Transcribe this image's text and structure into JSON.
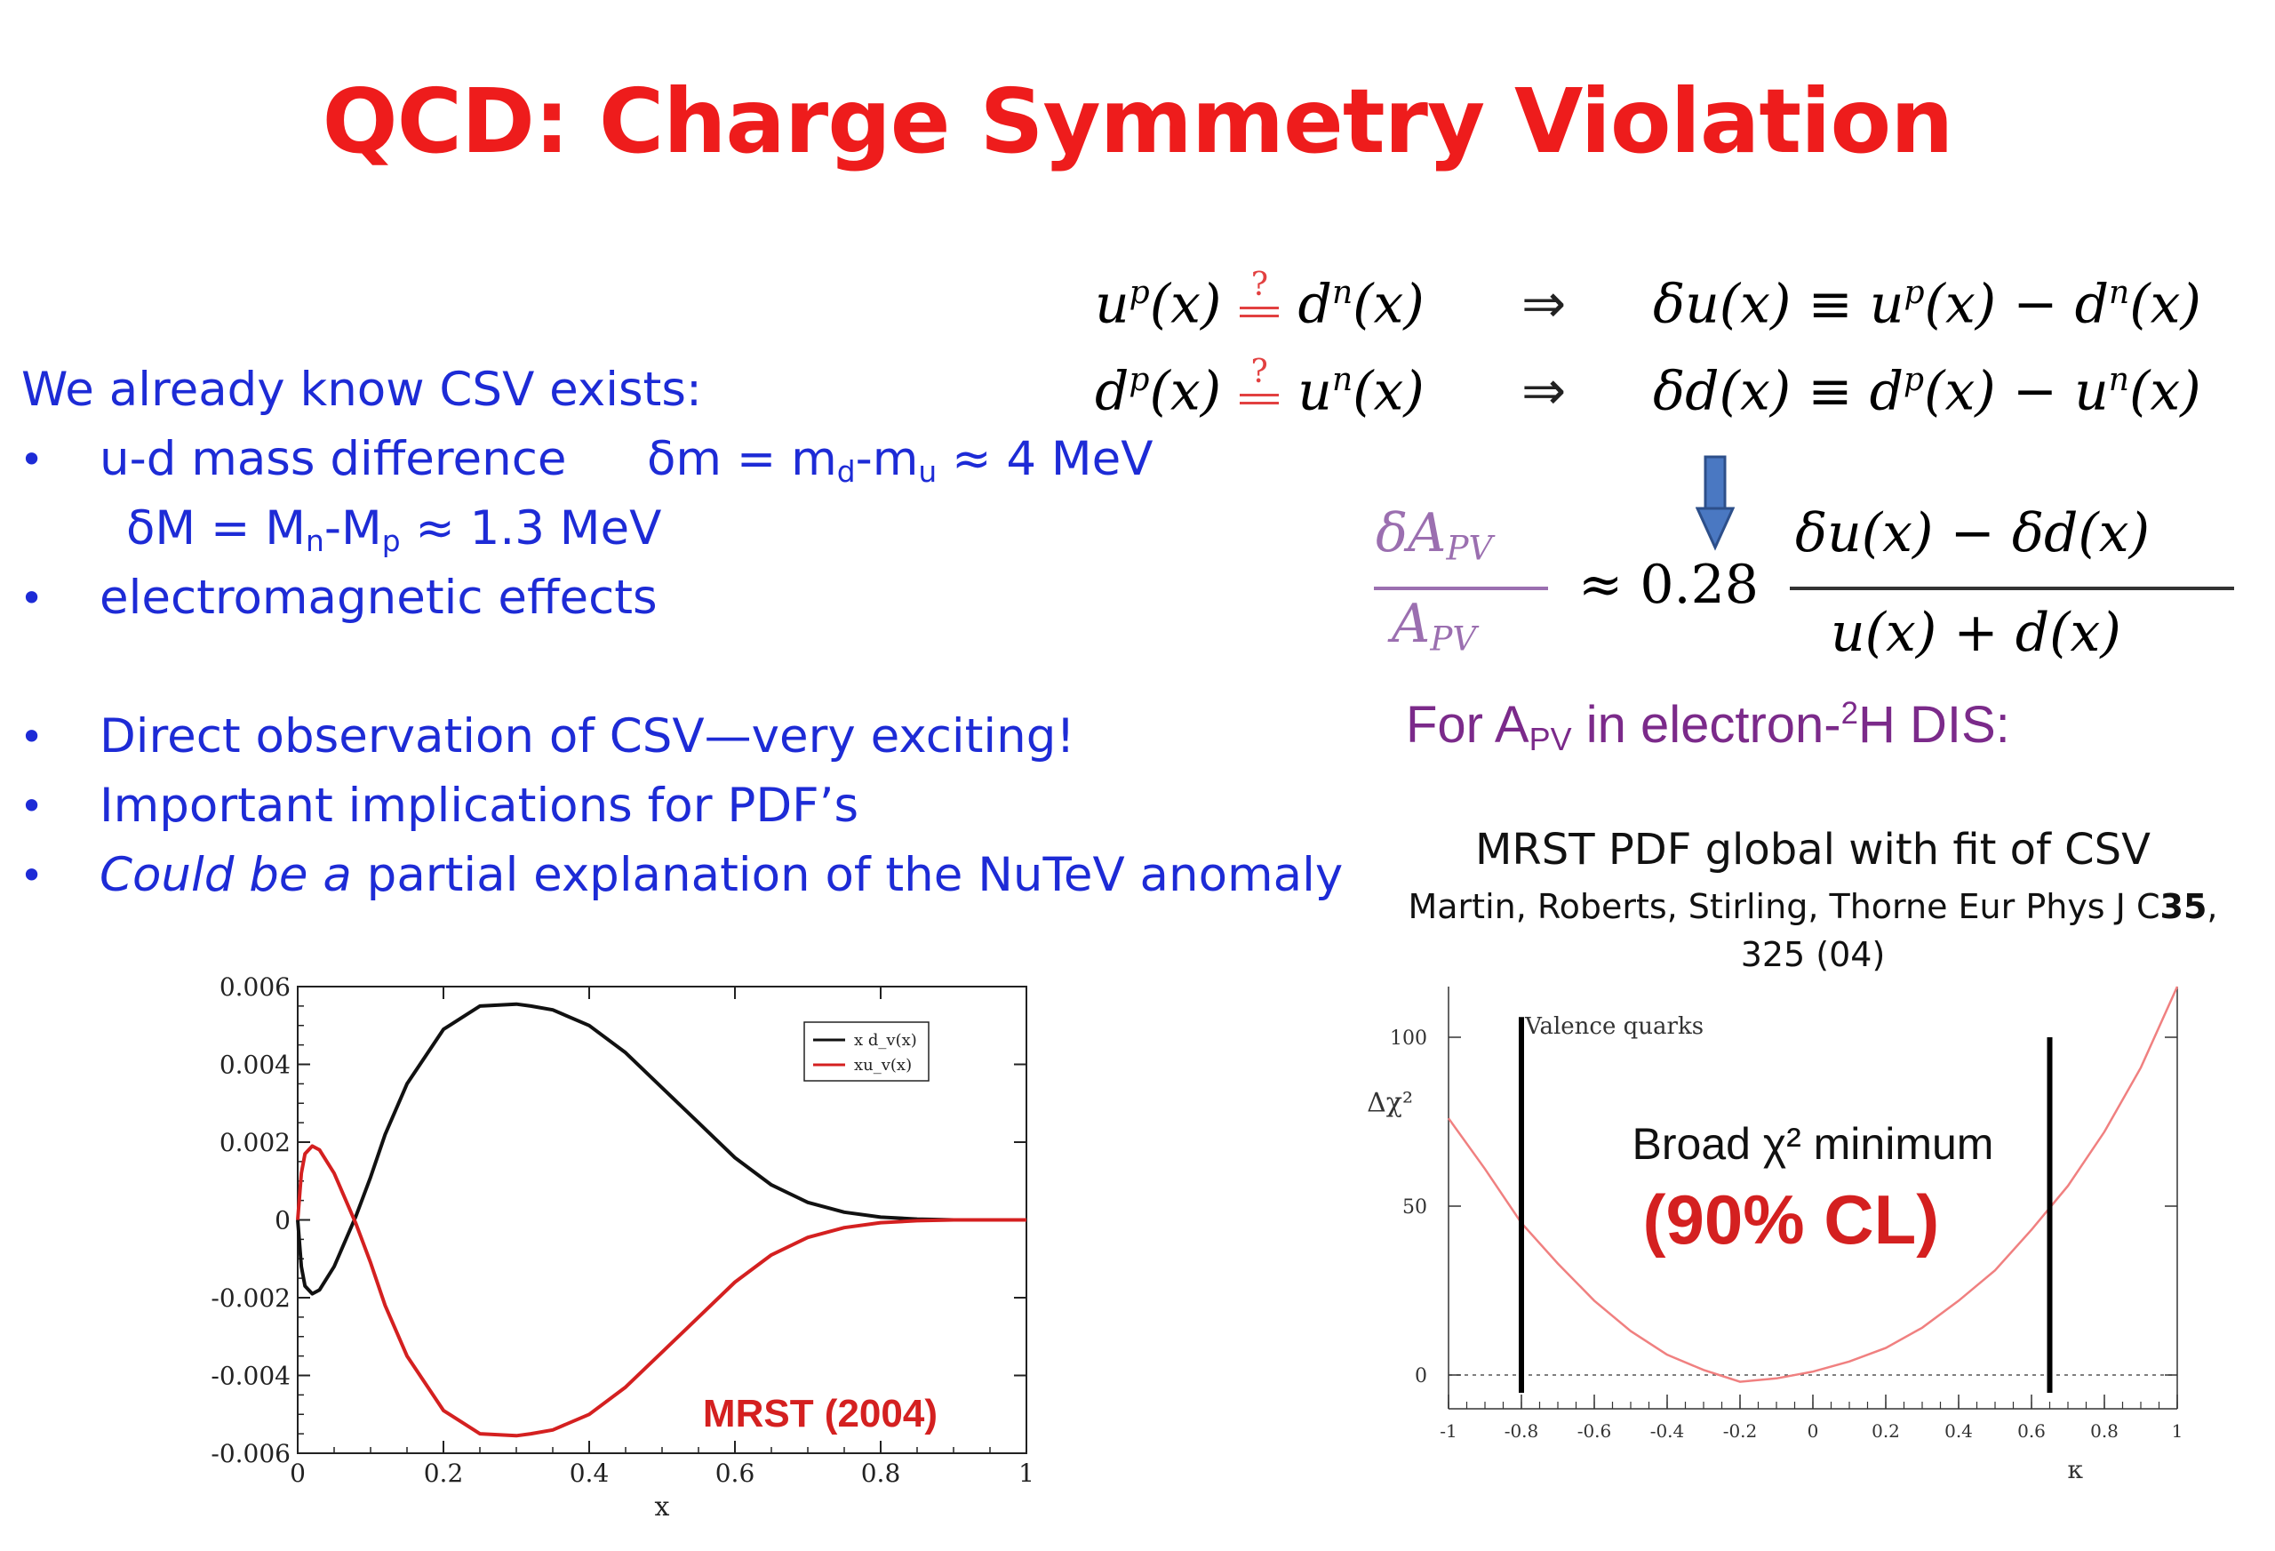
{
  "slide": {
    "title": "QCD: Charge Symmetry Violation",
    "intro": "We already know CSV exists:",
    "bullet_char": "•",
    "mass_diff_label": "u-d mass difference",
    "dm_eq": {
      "a": "δm = m",
      "b": "d",
      "c": "-m",
      "d": "u",
      "e": " ≈ 4 MeV"
    },
    "dM_eq": {
      "a": "δM = M",
      "b": "n",
      "c": "-M",
      "d": "p",
      "e": " ≈ 1.3 MeV"
    },
    "em_effects": "electromagnetic effects",
    "direct_obs": "Direct observation of CSV—very exciting!",
    "implications": "Important implications for PDF’s",
    "nutev_italic": "Could be a",
    "nutev_rest": " partial explanation of the NuTeV anomaly"
  },
  "equations": {
    "row1_lhs_a": "u",
    "row1_lhs_sup": "p",
    "row1_lhs_b": "(x)",
    "question_mark": "?",
    "row1_rhs_a": "d",
    "row1_rhs_sup": "n",
    "row1_rhs_b": "(x)",
    "implies": "⇒",
    "row1_def": "δu(x) ≡ u",
    "row1_def_sup1": "p",
    "row1_def_b": "(x) − d",
    "row1_def_sup2": "n",
    "row1_def_c": "(x)",
    "row2_lhs_a": "d",
    "row2_lhs_sup": "p",
    "row2_lhs_b": "(x)",
    "row2_rhs_a": "u",
    "row2_rhs_sup": "n",
    "row2_rhs_b": "(x)",
    "row2_def": "δd(x) ≡ d",
    "row2_def_sup1": "p",
    "row2_def_b": "(x) − u",
    "row2_def_sup2": "n",
    "row2_def_c": "(x)",
    "frac_num_a": "δA",
    "frac_num_sub": "PV",
    "frac_den_a": "A",
    "frac_den_sub": "PV",
    "approx": "≈ 0.28",
    "rhs_num": "δu(x) − δd(x)",
    "rhs_den": "u(x) + d(x)",
    "for_apv_a": "For A",
    "for_apv_sub": "PV",
    "for_apv_b": " in electron-",
    "for_apv_sup": "2",
    "for_apv_c": "H DIS:"
  },
  "mrst_fit": {
    "title": "MRST PDF global with fit of CSV",
    "citation_a": "Martin, Roberts, Stirling, Thorne Eur Phys J C",
    "citation_bold": "35",
    "citation_b": ",",
    "citation_c": "325 (04)"
  },
  "chart_data": [
    {
      "type": "line",
      "xlabel": "x",
      "ylabel": "",
      "xlim": [
        0,
        1
      ],
      "ylim": [
        -0.006,
        0.006
      ],
      "x_ticks": [
        "0",
        "0.2",
        "0.4",
        "0.6",
        "0.8",
        "1"
      ],
      "y_ticks": [
        "0.006",
        "0.004",
        "0.002",
        "0",
        "-0.002",
        "-0.004",
        "-0.006"
      ],
      "legend": {
        "position": "top-right"
      },
      "annotation": "MRST (2004)",
      "series": [
        {
          "name": "x d_v(x)",
          "color": "#111111",
          "x": [
            0,
            0.005,
            0.01,
            0.02,
            0.03,
            0.05,
            0.08,
            0.1,
            0.12,
            0.15,
            0.2,
            0.25,
            0.3,
            0.32,
            0.35,
            0.4,
            0.45,
            0.5,
            0.55,
            0.6,
            0.65,
            0.7,
            0.75,
            0.8,
            0.85,
            0.9,
            0.95,
            1.0
          ],
          "y": [
            0,
            -0.0012,
            -0.0017,
            -0.0019,
            -0.0018,
            -0.0012,
            0.0001,
            0.0011,
            0.0022,
            0.0035,
            0.0049,
            0.0055,
            0.00555,
            0.0055,
            0.0054,
            0.005,
            0.0043,
            0.0034,
            0.0025,
            0.0016,
            0.0009,
            0.00045,
            0.0002,
            7e-05,
            2e-05,
            0.0,
            0.0,
            0.0
          ]
        },
        {
          "name": "xu_v(x)",
          "color": "#d42020",
          "x": [
            0,
            0.005,
            0.01,
            0.02,
            0.03,
            0.05,
            0.08,
            0.1,
            0.12,
            0.15,
            0.2,
            0.25,
            0.3,
            0.32,
            0.35,
            0.4,
            0.45,
            0.5,
            0.55,
            0.6,
            0.65,
            0.7,
            0.75,
            0.8,
            0.85,
            0.9,
            0.95,
            1.0
          ],
          "y": [
            0,
            0.0012,
            0.0017,
            0.0019,
            0.0018,
            0.0012,
            -0.0001,
            -0.0011,
            -0.0022,
            -0.0035,
            -0.0049,
            -0.0055,
            -0.00555,
            -0.0055,
            -0.0054,
            -0.005,
            -0.0043,
            -0.0034,
            -0.0025,
            -0.0016,
            -0.0009,
            -0.00045,
            -0.0002,
            -7e-05,
            -2e-05,
            0.0,
            0.0,
            0.0
          ]
        }
      ]
    },
    {
      "type": "line",
      "xlabel": "κ",
      "ylabel": "Δχ²",
      "xlim": [
        -1,
        1
      ],
      "ylim": [
        -10,
        115
      ],
      "x_ticks": [
        "-1",
        "-0.8",
        "-0.6",
        "-0.4",
        "-0.2",
        "0",
        "0.2",
        "0.4",
        "0.6",
        "0.8",
        "1"
      ],
      "y_ticks": [
        "100",
        "50",
        "0"
      ],
      "annotation_top": "Valence quarks",
      "annotation_mid": "Broad χ² minimum",
      "annotation_cl": "(90% CL)",
      "cl_limits": [
        -0.8,
        0.65
      ],
      "series": [
        {
          "name": "",
          "color": "#f08080",
          "x": [
            -1,
            -0.9,
            -0.8,
            -0.7,
            -0.6,
            -0.5,
            -0.4,
            -0.3,
            -0.2,
            -0.1,
            0,
            0.1,
            0.2,
            0.3,
            0.4,
            0.5,
            0.6,
            0.7,
            0.8,
            0.9,
            1.0
          ],
          "y": [
            76,
            61,
            45,
            33,
            22,
            13,
            6,
            1.5,
            -2,
            -1,
            1,
            4,
            8,
            14,
            22,
            31,
            43,
            56,
            72,
            91,
            115
          ]
        }
      ]
    }
  ]
}
